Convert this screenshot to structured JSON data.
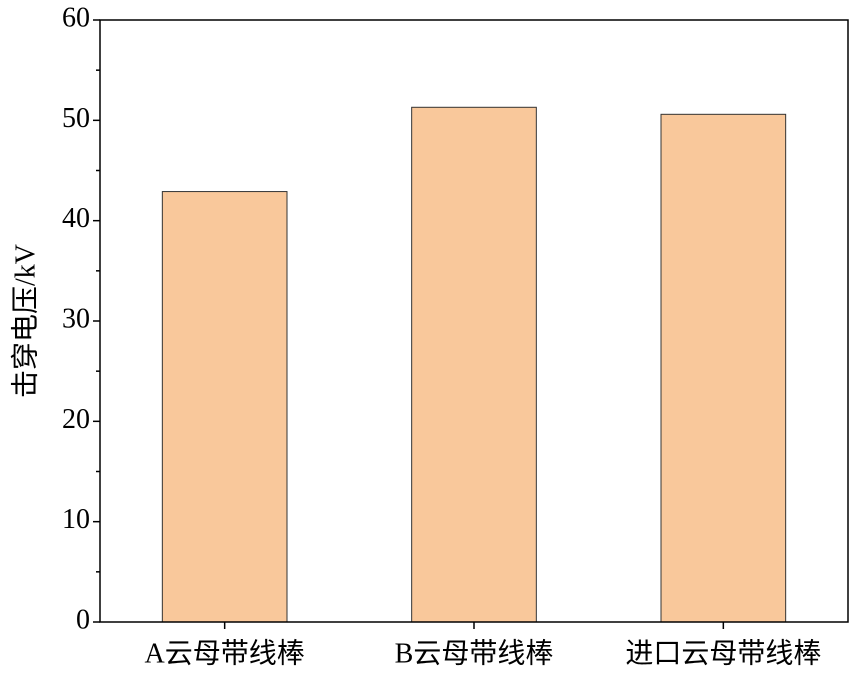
{
  "chart_data": {
    "type": "bar",
    "y_label": "击穿电压/kV",
    "categories": [
      "A云母带线棒",
      "B云母带线棒",
      "进口云母带线棒"
    ],
    "values": [
      42.9,
      51.3,
      50.6
    ],
    "color": "#f9c89b",
    "ylim": [
      0,
      60
    ],
    "yticks": [
      0,
      10,
      20,
      30,
      40,
      50,
      60
    ],
    "minor_yticks": [
      5,
      15,
      25,
      35,
      45,
      55
    ],
    "grid": false
  }
}
